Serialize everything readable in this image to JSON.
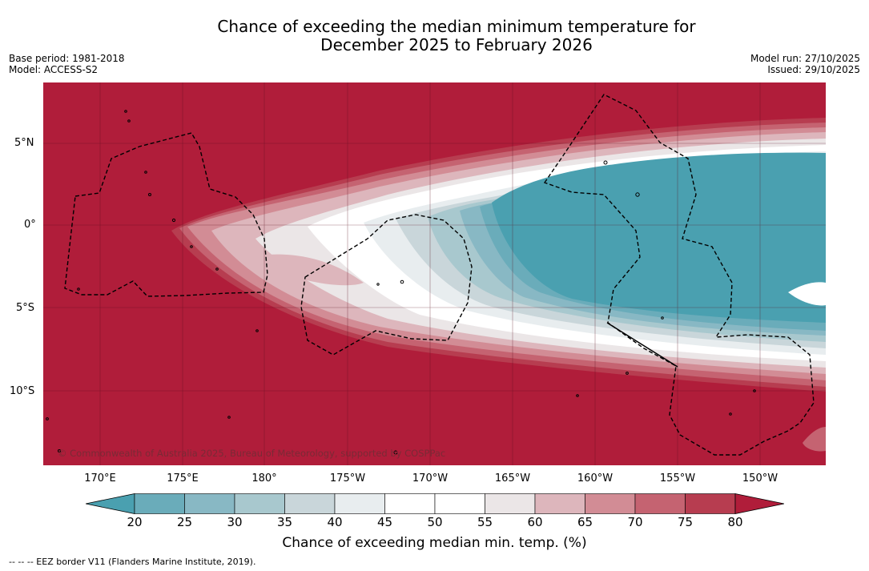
{
  "title_line1": "Chance of exceeding the median minimum temperature for",
  "title_line2": "December 2025 to February 2026",
  "base_period": "Base period: 1981-2018",
  "model": "Model: ACCESS-S2",
  "model_run": "Model run: 27/10/2025",
  "issued": "Issued: 29/10/2025",
  "copyright": "© Commonwealth of Australia 2025, Bureau of Meteorology, supported by COSPPac",
  "lat_labels": [
    "5°N",
    "0°",
    "5°S",
    "10°S"
  ],
  "lon_labels": [
    "170°E",
    "175°E",
    "180°",
    "175°W",
    "170°W",
    "165°W",
    "160°W",
    "155°W",
    "150°W"
  ],
  "colorbar": {
    "ticks": [
      "20",
      "25",
      "30",
      "35",
      "40",
      "45",
      "50",
      "55",
      "60",
      "65",
      "70",
      "75",
      "80"
    ],
    "colors": [
      "#4aa0b0",
      "#6aacba",
      "#88b8c4",
      "#a8c8ce",
      "#c9d6da",
      "#e8edef",
      "#ffffff",
      "#ffffff",
      "#ebe6e7",
      "#ddb6bc",
      "#d28c95",
      "#c56371",
      "#b73d50",
      "#b01d3a"
    ],
    "label": "Chance of exceeding median min. temp. (%)"
  },
  "footnote": "-- -- -- EEZ border V11 (Flanders Marine Institute, 2019)."
}
